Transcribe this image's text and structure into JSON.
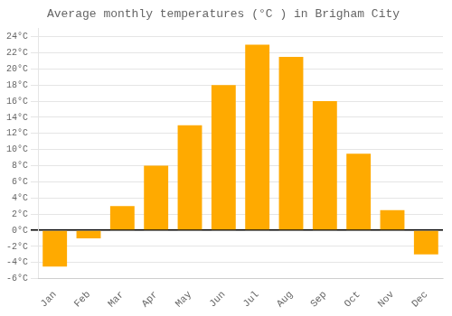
{
  "chart_data": {
    "type": "bar",
    "title": "Average monthly temperatures (°C ) in Brigham City",
    "categories": [
      "Jan",
      "Feb",
      "Mar",
      "Apr",
      "May",
      "Jun",
      "Jul",
      "Aug",
      "Sep",
      "Oct",
      "Nov",
      "Dec"
    ],
    "values": [
      -4.5,
      -1.0,
      3.0,
      8.0,
      13.0,
      18.0,
      23.0,
      21.5,
      16.0,
      9.5,
      2.5,
      -3.0
    ],
    "color": "#FFAA00",
    "ylim": [
      -6,
      25
    ],
    "yticks": [
      {
        "value": -6,
        "label": "-6°C"
      },
      {
        "value": -4,
        "label": "-4°C"
      },
      {
        "value": -2,
        "label": "-2°C"
      },
      {
        "value": 0,
        "label": "0°C"
      },
      {
        "value": 2,
        "label": "2°C"
      },
      {
        "value": 4,
        "label": "4°C"
      },
      {
        "value": 6,
        "label": "6°C"
      },
      {
        "value": 8,
        "label": "8°C"
      },
      {
        "value": 10,
        "label": "10°C"
      },
      {
        "value": 12,
        "label": "12°C"
      },
      {
        "value": 14,
        "label": "14°C"
      },
      {
        "value": 16,
        "label": "16°C"
      },
      {
        "value": 18,
        "label": "18°C"
      },
      {
        "value": 20,
        "label": "20°C"
      },
      {
        "value": 22,
        "label": "22°C"
      },
      {
        "value": 24,
        "label": "24°C"
      }
    ],
    "grid": true
  }
}
